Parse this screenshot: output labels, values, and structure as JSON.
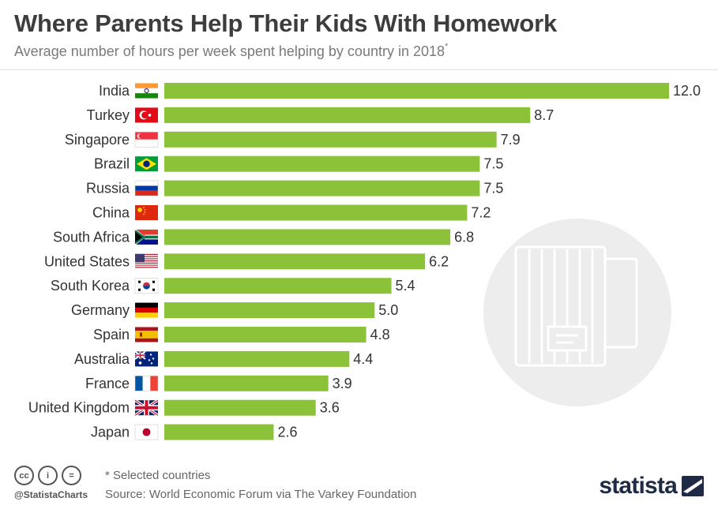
{
  "header": {
    "title": "Where Parents Help Their Kids With Homework",
    "subtitle": "Average number of hours per week spent helping by country in 2018",
    "subtitle_mark": "*"
  },
  "colors": {
    "bar": "#8cc13a",
    "label": "#333333",
    "watermark": "#ededed"
  },
  "chart_data": {
    "type": "bar",
    "orientation": "horizontal",
    "title": "Where Parents Help Their Kids With Homework",
    "subtitle": "Average number of hours per week spent helping by country in 2018*",
    "categories": [
      "India",
      "Turkey",
      "Singapore",
      "Brazil",
      "Russia",
      "China",
      "South Africa",
      "United States",
      "South Korea",
      "Germany",
      "Spain",
      "Australia",
      "France",
      "United Kingdom",
      "Japan"
    ],
    "values": [
      12.0,
      8.7,
      7.9,
      7.5,
      7.5,
      7.2,
      6.8,
      6.2,
      5.4,
      5.0,
      4.8,
      4.4,
      3.9,
      3.6,
      2.6
    ],
    "value_labels": [
      "12.0",
      "8.7",
      "7.9",
      "7.5",
      "7.5",
      "7.2",
      "6.8",
      "6.2",
      "5.4",
      "5.0",
      "4.8",
      "4.4",
      "3.9",
      "3.6",
      "2.6"
    ],
    "flag_icons": [
      "india-flag-icon",
      "turkey-flag-icon",
      "singapore-flag-icon",
      "brazil-flag-icon",
      "russia-flag-icon",
      "china-flag-icon",
      "south-africa-flag-icon",
      "usa-flag-icon",
      "south-korea-flag-icon",
      "germany-flag-icon",
      "spain-flag-icon",
      "australia-flag-icon",
      "france-flag-icon",
      "uk-flag-icon",
      "japan-flag-icon"
    ],
    "xlim": [
      0,
      12.0
    ],
    "xlabel": "",
    "ylabel": "",
    "grid": false,
    "legend": "none"
  },
  "footer": {
    "cc_icons": [
      "cc",
      "i",
      "="
    ],
    "handle": "@StatistaCharts",
    "note": "* Selected countries",
    "source": "Source: World Economic Forum via The Varkey Foundation",
    "brand": "statista"
  }
}
